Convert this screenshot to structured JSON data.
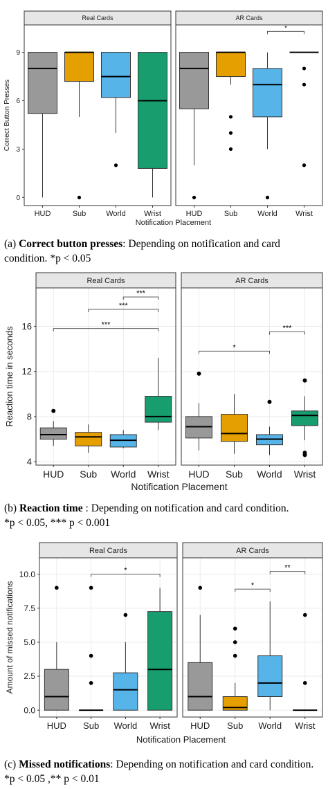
{
  "chart_data": [
    {
      "type": "box",
      "xlabel": "Notification Placement",
      "ylabel": "Correct Button Presses",
      "categories": [
        "HUD",
        "Sub",
        "World",
        "Wrist"
      ],
      "ylim": [
        -0.5,
        10.7
      ],
      "yticks": [
        0,
        3,
        6,
        9
      ],
      "tick_labels": [
        "0",
        "3",
        "6",
        "9"
      ],
      "grid": false,
      "colors": [
        "#999999",
        "#E69F00",
        "#56B4E9",
        "#189E6E"
      ],
      "panels": [
        {
          "title": "Real Cards",
          "boxes": [
            {
              "category": "HUD",
              "min": 0,
              "q1": 5.2,
              "median": 8,
              "q3": 9,
              "max": 9,
              "outliers": []
            },
            {
              "category": "Sub",
              "min": 5,
              "q1": 7.2,
              "median": 9,
              "q3": 9,
              "max": 9,
              "outliers": [
                0
              ]
            },
            {
              "category": "World",
              "min": 4,
              "q1": 6.2,
              "median": 7.5,
              "q3": 9,
              "max": 9,
              "outliers": [
                2
              ]
            },
            {
              "category": "Wrist",
              "min": 0,
              "q1": 1.8,
              "median": 6,
              "q3": 9,
              "max": 9,
              "outliers": []
            }
          ],
          "annotations": []
        },
        {
          "title": "AR Cards",
          "boxes": [
            {
              "category": "HUD",
              "min": 2,
              "q1": 5.5,
              "median": 8,
              "q3": 9,
              "max": 9,
              "outliers": [
                0
              ]
            },
            {
              "category": "Sub",
              "min": 7,
              "q1": 7.5,
              "median": 9,
              "q3": 9,
              "max": 9,
              "outliers": [
                5,
                4,
                3
              ]
            },
            {
              "category": "World",
              "min": 3,
              "q1": 5,
              "median": 7,
              "q3": 8,
              "max": 9,
              "outliers": [
                0
              ]
            },
            {
              "category": "Wrist",
              "min": 9,
              "q1": 9,
              "median": 9,
              "q3": 9,
              "max": 9,
              "outliers": [
                8,
                7,
                2
              ]
            }
          ],
          "annotations": [
            {
              "from": "World",
              "to": "Wrist",
              "y": 10.3,
              "label": "*"
            }
          ]
        }
      ]
    },
    {
      "type": "box",
      "xlabel": "Notification Placement",
      "ylabel": "Reaction time in seconds",
      "categories": [
        "HUD",
        "Sub",
        "World",
        "Wrist"
      ],
      "ylim": [
        3.7,
        19.4
      ],
      "yticks": [
        4,
        8,
        12,
        16
      ],
      "tick_labels": [
        "4",
        "8",
        "12",
        "16"
      ],
      "grid": true,
      "colors": [
        "#999999",
        "#E69F00",
        "#56B4E9",
        "#189E6E"
      ],
      "panels": [
        {
          "title": "Real Cards",
          "boxes": [
            {
              "category": "HUD",
              "min": 5.4,
              "q1": 6.0,
              "median": 6.4,
              "q3": 7.0,
              "max": 7.6,
              "outliers": [
                8.5
              ]
            },
            {
              "category": "Sub",
              "min": 4.8,
              "q1": 5.4,
              "median": 6.2,
              "q3": 6.6,
              "max": 7.3,
              "outliers": []
            },
            {
              "category": "World",
              "min": 5.2,
              "q1": 5.3,
              "median": 5.9,
              "q3": 6.4,
              "max": 6.8,
              "outliers": []
            },
            {
              "category": "Wrist",
              "min": 6.8,
              "q1": 7.5,
              "median": 8.0,
              "q3": 9.8,
              "max": 13.2,
              "outliers": []
            }
          ],
          "annotations": [
            {
              "from": "HUD",
              "to": "Wrist",
              "y": 15.8,
              "label": "***"
            },
            {
              "from": "Sub",
              "to": "Wrist",
              "y": 17.5,
              "label": "***"
            },
            {
              "from": "World",
              "to": "Wrist",
              "y": 18.6,
              "label": "***"
            }
          ]
        },
        {
          "title": "AR Cards",
          "boxes": [
            {
              "category": "HUD",
              "min": 5.0,
              "q1": 6.1,
              "median": 7.1,
              "q3": 8.0,
              "max": 9.2,
              "outliers": [
                11.8
              ]
            },
            {
              "category": "Sub",
              "min": 4.7,
              "q1": 5.8,
              "median": 6.5,
              "q3": 8.2,
              "max": 10.0,
              "outliers": []
            },
            {
              "category": "World",
              "min": 4.6,
              "q1": 5.5,
              "median": 6.0,
              "q3": 6.4,
              "max": 7.1,
              "outliers": [
                9.3
              ]
            },
            {
              "category": "Wrist",
              "min": 5.9,
              "q1": 7.2,
              "median": 8.1,
              "q3": 8.5,
              "max": 9.8,
              "outliers": [
                11.2,
                4.8,
                4.6
              ]
            }
          ],
          "annotations": [
            {
              "from": "HUD",
              "to": "World",
              "y": 13.8,
              "label": "*"
            },
            {
              "from": "World",
              "to": "Wrist",
              "y": 15.5,
              "label": "***"
            }
          ]
        }
      ]
    },
    {
      "type": "box",
      "xlabel": "Notification Placement",
      "ylabel": "Amount of missed notifications",
      "categories": [
        "HUD",
        "Sub",
        "World",
        "Wrist"
      ],
      "ylim": [
        -0.5,
        11.2
      ],
      "yticks": [
        0,
        2.5,
        5,
        7.5,
        10
      ],
      "tick_labels": [
        "0.0",
        "2.5",
        "5.0",
        "7.5",
        "10.0"
      ],
      "grid": true,
      "colors": [
        "#999999",
        "#E69F00",
        "#56B4E9",
        "#189E6E"
      ],
      "panels": [
        {
          "title": "Real Cards",
          "boxes": [
            {
              "category": "HUD",
              "min": 0,
              "q1": 0,
              "median": 1,
              "q3": 3,
              "max": 5,
              "outliers": [
                9
              ]
            },
            {
              "category": "Sub",
              "min": 0,
              "q1": 0,
              "median": 0,
              "q3": 0,
              "max": 0,
              "outliers": [
                9,
                4,
                2
              ]
            },
            {
              "category": "World",
              "min": 0,
              "q1": 0,
              "median": 1.5,
              "q3": 2.75,
              "max": 5,
              "outliers": [
                7
              ]
            },
            {
              "category": "Wrist",
              "min": 0,
              "q1": 0,
              "median": 3,
              "q3": 7.25,
              "max": 9,
              "outliers": []
            }
          ],
          "annotations": [
            {
              "from": "Sub",
              "to": "Wrist",
              "y": 10.0,
              "label": "*"
            }
          ]
        },
        {
          "title": "AR Cards",
          "boxes": [
            {
              "category": "HUD",
              "min": 0,
              "q1": 0,
              "median": 1,
              "q3": 3.5,
              "max": 7,
              "outliers": [
                9
              ]
            },
            {
              "category": "Sub",
              "min": 0,
              "q1": 0,
              "median": 0.2,
              "q3": 1,
              "max": 2,
              "outliers": [
                6,
                5,
                4
              ]
            },
            {
              "category": "World",
              "min": 0,
              "q1": 1,
              "median": 2,
              "q3": 4,
              "max": 8,
              "outliers": []
            },
            {
              "category": "Wrist",
              "min": 0,
              "q1": 0,
              "median": 0,
              "q3": 0,
              "max": 0,
              "outliers": [
                7,
                2
              ]
            }
          ],
          "annotations": [
            {
              "from": "Sub",
              "to": "World",
              "y": 8.9,
              "label": "*"
            },
            {
              "from": "World",
              "to": "Wrist",
              "y": 10.2,
              "label": "**"
            }
          ]
        }
      ]
    }
  ],
  "captions": [
    {
      "label": "(a)",
      "bold": "Correct button presses",
      "text": ": Depending on notification and card condition. ",
      "sig": "*p < 0.05"
    },
    {
      "label": "(b)",
      "bold": "Reaction time",
      "text": " : Depending on notification and card condition.",
      "sig": "*p < 0.05, *** p < 0.001"
    },
    {
      "label": "(c)",
      "bold": "Missed notifications",
      "text": ": Depending on notification and card condition. ",
      "sig": "*p < 0.05 ,** p < 0.01"
    }
  ]
}
